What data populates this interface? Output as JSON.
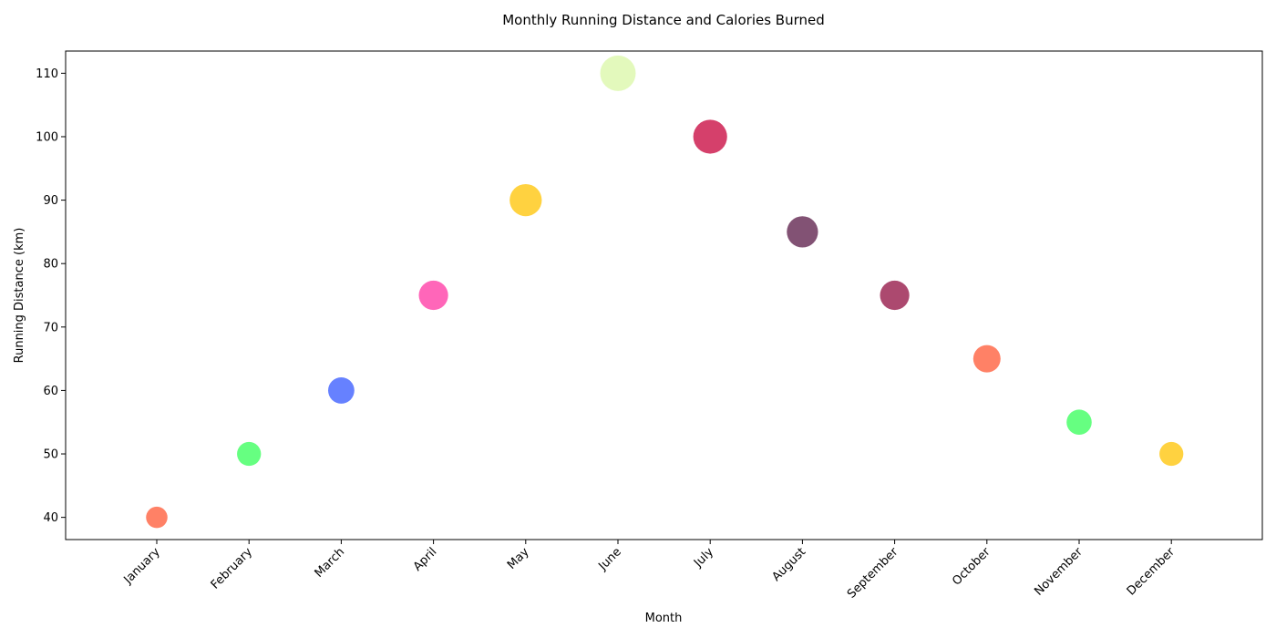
{
  "chart_data": {
    "type": "scatter",
    "title": "Monthly Running Distance and Calories Burned",
    "xlabel": "Month",
    "ylabel": "Running Distance (km)",
    "categories": [
      "January",
      "February",
      "March",
      "April",
      "May",
      "June",
      "July",
      "August",
      "September",
      "October",
      "November",
      "December"
    ],
    "values": [
      40,
      50,
      60,
      75,
      90,
      110,
      100,
      85,
      75,
      65,
      55,
      50
    ],
    "colors": [
      "#ff5733",
      "#33ff57",
      "#3357ff",
      "#ff33a1",
      "#ffc300",
      "#daf7a6",
      "#c70039",
      "#581845",
      "#900c3f",
      "#ff5733",
      "#33ff57",
      "#ffc300"
    ],
    "ylim": [
      36.5,
      113.5
    ],
    "yticks": [
      40,
      50,
      60,
      70,
      80,
      90,
      100,
      110
    ],
    "grid": false,
    "legend": "none"
  }
}
